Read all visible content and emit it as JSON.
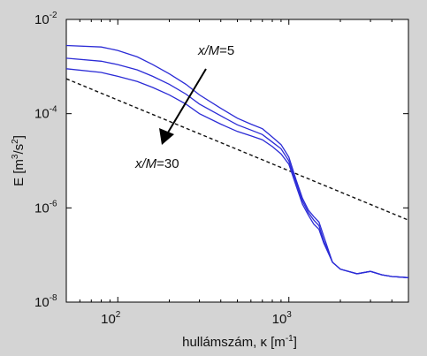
{
  "chart_data": {
    "type": "line",
    "xscale": "log",
    "yscale": "log",
    "xlim": [
      50,
      5000
    ],
    "ylim": [
      1e-08,
      0.01
    ],
    "grid": false,
    "legend": "none",
    "xlabel": {
      "main": "hullámszám, κ [m",
      "sup": "-1",
      "close": "]"
    },
    "ylabel": {
      "a": "E [m",
      "sup1": "3",
      "b": "/s",
      "sup2": "2",
      "c": "]"
    },
    "xticks": [
      {
        "value": 100,
        "base": "10",
        "exp": "2"
      },
      {
        "value": 1000,
        "base": "10",
        "exp": "3"
      }
    ],
    "yticks": [
      {
        "value": 0.01,
        "base": "10",
        "exp": "-2"
      },
      {
        "value": 0.0001,
        "base": "10",
        "exp": "-4"
      },
      {
        "value": 1e-06,
        "base": "10",
        "exp": "-6"
      },
      {
        "value": 1e-08,
        "base": "10",
        "exp": "-8"
      }
    ],
    "annotations": {
      "start": {
        "var": "x/M",
        "rest": "=5"
      },
      "end": {
        "var": "x/M",
        "rest": "=30"
      }
    },
    "colors": {
      "series": "#2b2bd6",
      "reference": "#111111",
      "background": "#d4d4d4",
      "plot_bg": "#ffffff"
    },
    "series": [
      {
        "x": [
          50,
          80,
          100,
          130,
          160,
          200,
          250,
          300,
          400,
          500,
          600,
          700,
          800,
          900,
          1000,
          1100,
          1200,
          1300,
          1400,
          1500,
          1600,
          1800,
          2000,
          2500,
          3000,
          3500,
          4000,
          5000
        ],
        "y": [
          0.0028,
          0.0026,
          0.0022,
          0.0016,
          0.0011,
          0.0007,
          0.00042,
          0.00025,
          0.00013,
          8e-05,
          6e-05,
          4.8e-05,
          3.2e-05,
          2.2e-05,
          1.2e-05,
          4e-06,
          1.6e-06,
          9e-07,
          6.5e-07,
          5e-07,
          2.5e-07,
          7e-08,
          5e-08,
          4e-08,
          4.5e-08,
          3.8e-08,
          3.5e-08,
          3.3e-08
        ]
      },
      {
        "x": [
          50,
          80,
          100,
          130,
          160,
          200,
          250,
          300,
          400,
          500,
          600,
          700,
          800,
          900,
          1000,
          1100,
          1200,
          1300,
          1400,
          1500,
          1600,
          1800,
          2000,
          2500,
          3000,
          3500,
          4000,
          5000
        ],
        "y": [
          0.0015,
          0.0013,
          0.0011,
          0.00085,
          0.00062,
          0.00042,
          0.00026,
          0.00016,
          9e-05,
          5.8e-05,
          4.5e-05,
          3.6e-05,
          2.5e-05,
          1.8e-05,
          1e-05,
          3.5e-06,
          1.4e-06,
          8e-07,
          5.5e-07,
          4.2e-07,
          2e-07,
          7e-08,
          5e-08,
          4e-08,
          4.5e-08,
          3.8e-08,
          3.5e-08,
          3.3e-08
        ]
      },
      {
        "x": [
          50,
          80,
          100,
          130,
          160,
          200,
          250,
          300,
          400,
          500,
          600,
          700,
          800,
          900,
          1000,
          1100,
          1200,
          1300,
          1400,
          1500,
          1600,
          1800,
          2000,
          2500,
          3000,
          3500,
          4000,
          5000
        ],
        "y": [
          0.0009,
          0.00075,
          0.00062,
          0.00048,
          0.00036,
          0.00025,
          0.00016,
          0.0001,
          6e-05,
          4.2e-05,
          3.4e-05,
          2.8e-05,
          2e-05,
          1.4e-05,
          8.5e-06,
          3e-06,
          1.2e-06,
          7e-07,
          4.5e-07,
          3.5e-07,
          1.8e-07,
          7e-08,
          5e-08,
          4e-08,
          4.5e-08,
          3.8e-08,
          3.5e-08,
          3.3e-08
        ]
      }
    ],
    "reference_line": {
      "style": "dashed",
      "x": [
        50,
        5000
      ],
      "y": [
        0.00055,
        5.5e-07
      ]
    }
  }
}
